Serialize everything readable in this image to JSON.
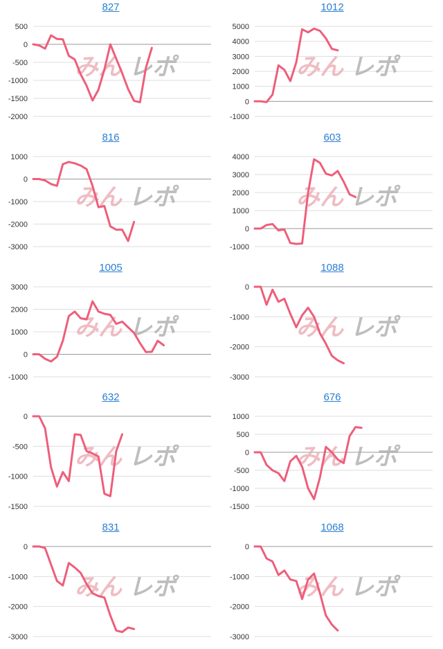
{
  "watermark": {
    "left": "みん",
    "right": "レポ"
  },
  "colors": {
    "line": "#ee5e7a",
    "grid": "#dddddd",
    "zero": "#999999",
    "title": "#2a7fd4",
    "label": "#333333",
    "wm_left": "#e9a8b0",
    "wm_right": "#a9a9a9"
  },
  "chart_data": [
    {
      "type": "line",
      "title": "827",
      "ylim": [
        -2000,
        500
      ],
      "yticks": [
        500,
        0,
        -500,
        -1000,
        -1500,
        -2000
      ],
      "grid": true,
      "x_range": [
        0,
        30
      ],
      "values": [
        0,
        -30,
        -120,
        250,
        150,
        140,
        -320,
        -420,
        -830,
        -1150,
        -1560,
        -1260,
        -700,
        0,
        -400,
        -800,
        -1240,
        -1570,
        -1610,
        -650,
        -100
      ]
    },
    {
      "type": "line",
      "title": "1012",
      "ylim": [
        -1000,
        5000
      ],
      "yticks": [
        5000,
        4000,
        3000,
        2000,
        1000,
        0,
        -1000
      ],
      "grid": true,
      "x_range": [
        0,
        30
      ],
      "values": [
        0,
        0,
        -50,
        450,
        2400,
        2100,
        1350,
        2600,
        4800,
        4600,
        4850,
        4700,
        4200,
        3500,
        3400
      ]
    },
    {
      "type": "line",
      "title": "816",
      "ylim": [
        -3000,
        1000
      ],
      "yticks": [
        1000,
        0,
        -1000,
        -2000,
        -3000
      ],
      "grid": true,
      "x_range": [
        0,
        30
      ],
      "values": [
        0,
        0,
        -60,
        -220,
        -300,
        660,
        760,
        700,
        600,
        440,
        -300,
        -1250,
        -1200,
        -2100,
        -2250,
        -2250,
        -2750,
        -1900
      ]
    },
    {
      "type": "line",
      "title": "603",
      "ylim": [
        -1000,
        4000
      ],
      "yticks": [
        4000,
        3000,
        2000,
        1000,
        0,
        -1000
      ],
      "grid": true,
      "x_range": [
        0,
        30
      ],
      "values": [
        0,
        0,
        200,
        250,
        -100,
        -50,
        -800,
        -850,
        -830,
        2000,
        3850,
        3650,
        3050,
        2950,
        3200,
        2600,
        1900,
        1750
      ]
    },
    {
      "type": "line",
      "title": "1005",
      "ylim": [
        -1000,
        3000
      ],
      "yticks": [
        3000,
        2000,
        1000,
        0,
        -1000
      ],
      "grid": true,
      "x_range": [
        0,
        30
      ],
      "values": [
        0,
        0,
        -200,
        -320,
        -110,
        600,
        1700,
        1900,
        1600,
        1550,
        2350,
        1900,
        1800,
        1750,
        1350,
        1450,
        1200,
        950,
        500,
        100,
        110,
        600,
        400
      ]
    },
    {
      "type": "line",
      "title": "1088",
      "ylim": [
        -3000,
        0
      ],
      "yticks": [
        0,
        -1000,
        -2000,
        -3000
      ],
      "grid": true,
      "x_range": [
        0,
        30
      ],
      "values": [
        0,
        0,
        -600,
        -100,
        -500,
        -400,
        -900,
        -1350,
        -950,
        -700,
        -1000,
        -1550,
        -1900,
        -2300,
        -2450,
        -2550
      ]
    },
    {
      "type": "line",
      "title": "632",
      "ylim": [
        -1500,
        0
      ],
      "yticks": [
        0,
        -500,
        -1000,
        -1500
      ],
      "grid": true,
      "x_range": [
        0,
        30
      ],
      "values": [
        0,
        0,
        -200,
        -850,
        -1170,
        -930,
        -1080,
        -300,
        -310,
        -580,
        -620,
        -670,
        -1290,
        -1330,
        -580,
        -300
      ]
    },
    {
      "type": "line",
      "title": "676",
      "ylim": [
        -1500,
        1000
      ],
      "yticks": [
        1000,
        500,
        0,
        -500,
        -1000,
        -1500
      ],
      "grid": true,
      "x_range": [
        0,
        30
      ],
      "values": [
        0,
        0,
        -350,
        -500,
        -580,
        -800,
        -250,
        -100,
        -400,
        -1000,
        -1300,
        -700,
        150,
        0,
        -200,
        -300,
        450,
        700,
        680
      ]
    },
    {
      "type": "line",
      "title": "831",
      "ylim": [
        -3000,
        0
      ],
      "yticks": [
        0,
        -1000,
        -2000,
        -3000
      ],
      "grid": true,
      "x_range": [
        0,
        30
      ],
      "values": [
        0,
        0,
        -50,
        -600,
        -1150,
        -1300,
        -550,
        -700,
        -880,
        -1250,
        -1560,
        -1650,
        -1700,
        -2300,
        -2800,
        -2850,
        -2700,
        -2750
      ]
    },
    {
      "type": "line",
      "title": "1068",
      "ylim": [
        -3000,
        0
      ],
      "yticks": [
        0,
        -1000,
        -2000,
        -3000
      ],
      "grid": true,
      "x_range": [
        0,
        30
      ],
      "values": [
        0,
        0,
        -400,
        -500,
        -950,
        -800,
        -1100,
        -1150,
        -1750,
        -1100,
        -900,
        -1550,
        -2300,
        -2600,
        -2800
      ]
    }
  ]
}
